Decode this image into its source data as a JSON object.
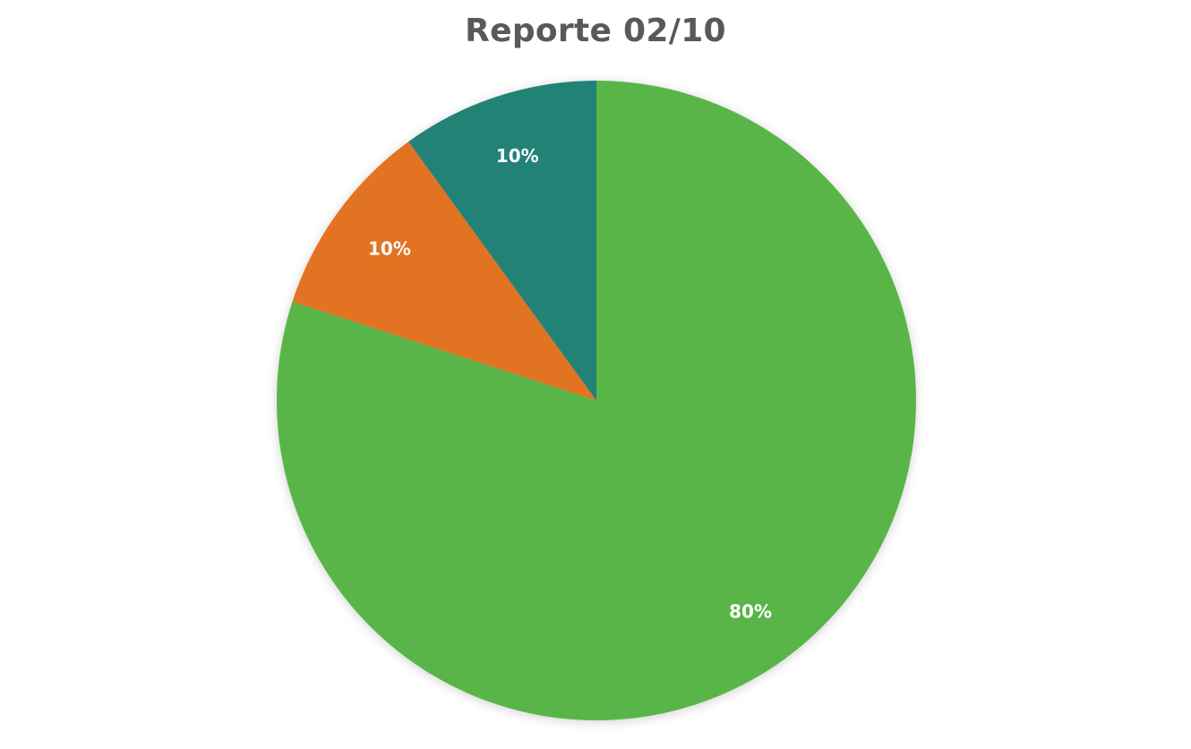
{
  "chart_data": {
    "type": "pie",
    "title": "Reporte 02/10",
    "slices": [
      {
        "value": 80,
        "label": "80%",
        "color": "#5AB54A"
      },
      {
        "value": 10,
        "label": "10%",
        "color": "#E27324"
      },
      {
        "value": 10,
        "label": "10%",
        "color": "#218276"
      }
    ],
    "start": "12 o'clock",
    "direction": "clockwise",
    "legend": "none"
  }
}
